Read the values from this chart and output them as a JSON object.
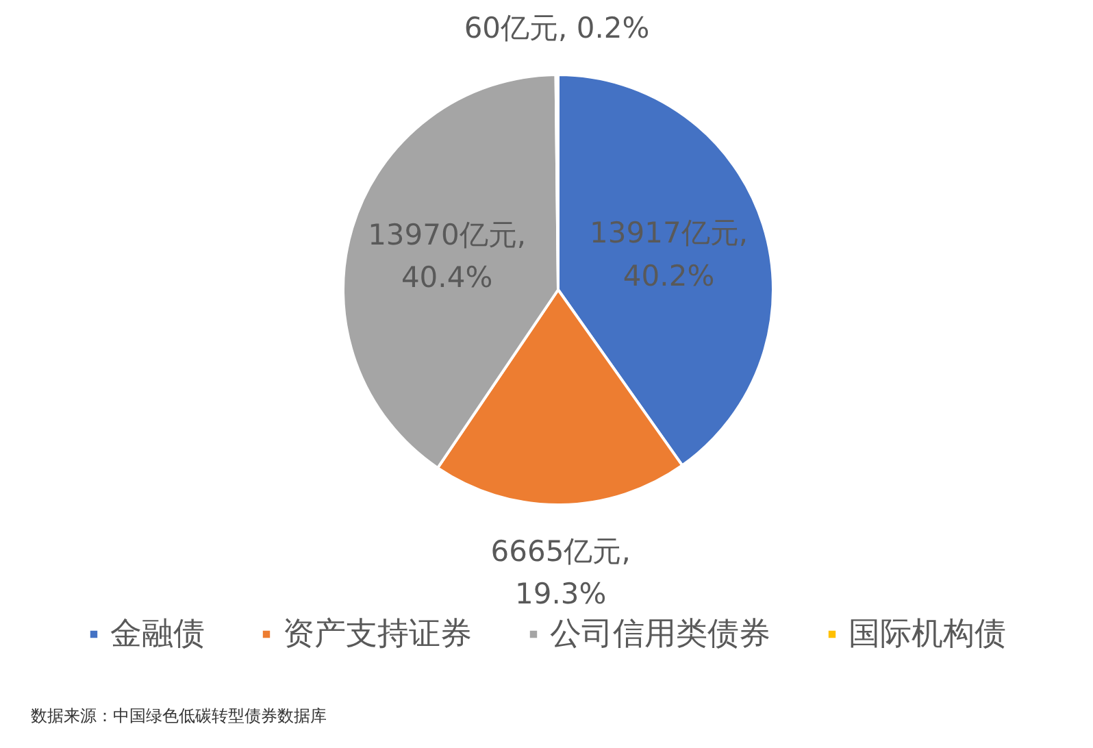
{
  "chart_data": {
    "type": "pie",
    "categories": [
      "金融债",
      "资产支持证券",
      "公司信用类债券",
      "国际机构债"
    ],
    "values": [
      13917,
      6665,
      13970,
      60
    ],
    "colors": [
      "#4472c4",
      "#ed7d31",
      "#a5a5a5",
      "#ffc000"
    ],
    "value_labels": [
      "13917亿元, 40.2%",
      "6665亿元, 19.3%",
      "13970亿元, 40.4%",
      "60亿元, 0.2%"
    ],
    "legend": "bottom",
    "annotations": [
      "数据来源：中国绿色低碳转型债券数据库"
    ]
  }
}
